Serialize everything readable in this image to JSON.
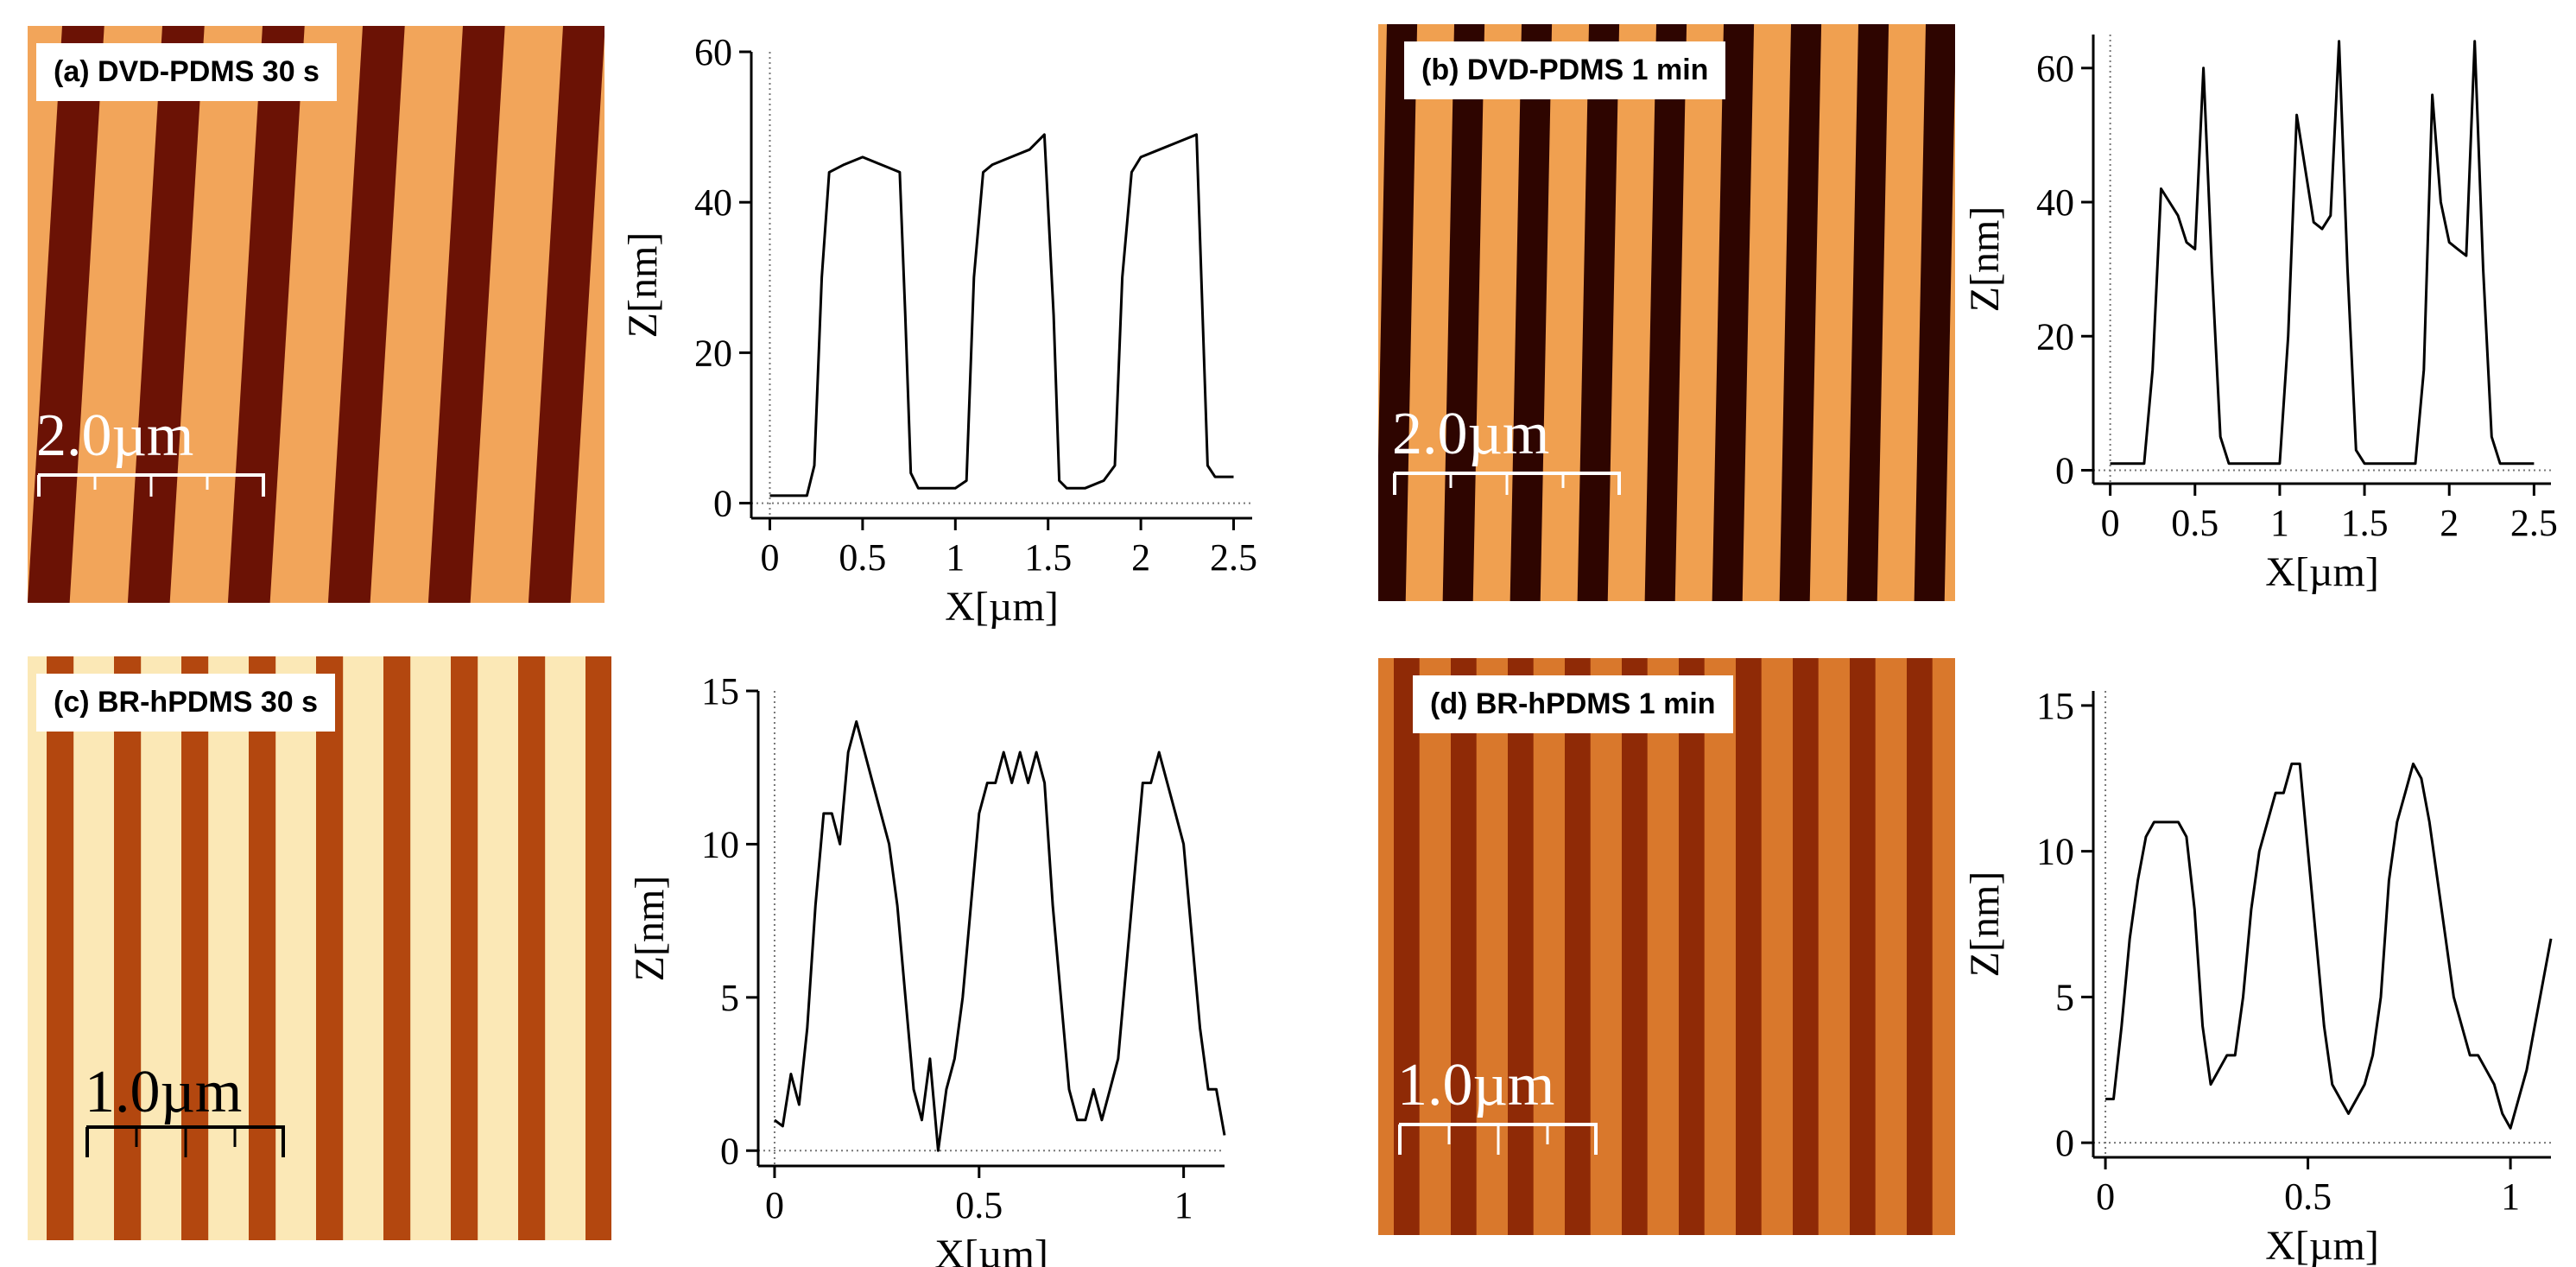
{
  "panels": [
    {
      "id": "a",
      "label": "(a) DVD-PDMS 30 s",
      "scale_bar": "2.0µm",
      "stripe_colors": {
        "light": "#f2a55a",
        "dark": "#6b1205"
      }
    },
    {
      "id": "b",
      "label": "(b) DVD-PDMS 1 min",
      "scale_bar": "2.0µm",
      "stripe_colors": {
        "light": "#f0a050",
        "dark": "#2e0500"
      }
    },
    {
      "id": "c",
      "label": "(c) BR-hPDMS 30 s",
      "scale_bar": "1.0µm",
      "stripe_colors": {
        "light": "#fbe8b6",
        "dark": "#b3470f"
      }
    },
    {
      "id": "d",
      "label": "(d) BR-hPDMS 1 min",
      "scale_bar": "1.0µm",
      "stripe_colors": {
        "light": "#d9782c",
        "dark": "#8f2a06"
      }
    }
  ],
  "chart_data": [
    {
      "type": "line",
      "panel": "a",
      "xlabel": "X[µm]",
      "ylabel": "Z[nm]",
      "xlim": [
        -0.1,
        2.6
      ],
      "ylim": [
        -2,
        60
      ],
      "xticks": [
        "0",
        "0.5",
        "1",
        "1.5",
        "2",
        "2.5"
      ],
      "yticks": [
        "0",
        "20",
        "40",
        "60"
      ],
      "series": [
        {
          "x": [
            0,
            0.1,
            0.2,
            0.24,
            0.28,
            0.32,
            0.4,
            0.5,
            0.6,
            0.7,
            0.73,
            0.76,
            0.8,
            0.9,
            1.0,
            1.06,
            1.1,
            1.15,
            1.2,
            1.3,
            1.4,
            1.48,
            1.53,
            1.56,
            1.6,
            1.7,
            1.8,
            1.86,
            1.9,
            1.95,
            2.0,
            2.1,
            2.2,
            2.3,
            2.36,
            2.4,
            2.5
          ],
          "y": [
            1,
            1,
            1,
            5,
            30,
            44,
            45,
            46,
            45,
            44,
            25,
            4,
            2,
            2,
            2,
            3,
            30,
            44,
            45,
            46,
            47,
            49,
            25,
            3,
            2,
            2,
            3,
            5,
            30,
            44,
            46,
            47,
            48,
            49,
            5,
            3.5,
            3.5
          ]
        }
      ]
    },
    {
      "type": "line",
      "panel": "b",
      "xlabel": "X[µm]",
      "ylabel": "Z[nm]",
      "xlim": [
        -0.1,
        2.6
      ],
      "ylim": [
        -2,
        65
      ],
      "xticks": [
        "0",
        "0.5",
        "1",
        "1.5",
        "2",
        "2.5"
      ],
      "yticks": [
        "0",
        "20",
        "40",
        "60"
      ],
      "series": [
        {
          "x": [
            0,
            0.1,
            0.2,
            0.25,
            0.3,
            0.35,
            0.4,
            0.45,
            0.5,
            0.55,
            0.6,
            0.65,
            0.7,
            0.8,
            0.9,
            1.0,
            1.05,
            1.1,
            1.15,
            1.2,
            1.25,
            1.3,
            1.35,
            1.4,
            1.45,
            1.5,
            1.6,
            1.7,
            1.8,
            1.85,
            1.9,
            1.95,
            2.0,
            2.05,
            2.1,
            2.15,
            2.2,
            2.25,
            2.3,
            2.4,
            2.5
          ],
          "y": [
            1,
            1,
            1,
            15,
            42,
            40,
            38,
            34,
            33,
            60,
            30,
            5,
            1,
            1,
            1,
            1,
            20,
            53,
            45,
            37,
            36,
            38,
            64,
            30,
            3,
            1,
            1,
            1,
            1,
            15,
            56,
            40,
            34,
            33,
            32,
            64,
            30,
            5,
            1,
            1,
            1
          ]
        }
      ]
    },
    {
      "type": "line",
      "panel": "c",
      "xlabel": "X[µm]",
      "ylabel": "Z[nm]",
      "xlim": [
        -0.04,
        1.1
      ],
      "ylim": [
        -0.5,
        15
      ],
      "xticks": [
        "0",
        "0.5",
        "1"
      ],
      "yticks": [
        "0",
        "5",
        "10",
        "15"
      ],
      "series": [
        {
          "x": [
            0,
            0.02,
            0.04,
            0.06,
            0.08,
            0.1,
            0.12,
            0.14,
            0.16,
            0.18,
            0.2,
            0.22,
            0.24,
            0.26,
            0.28,
            0.3,
            0.32,
            0.34,
            0.36,
            0.38,
            0.4,
            0.42,
            0.44,
            0.46,
            0.48,
            0.5,
            0.52,
            0.54,
            0.56,
            0.58,
            0.6,
            0.62,
            0.64,
            0.66,
            0.68,
            0.7,
            0.72,
            0.74,
            0.76,
            0.78,
            0.8,
            0.82,
            0.84,
            0.86,
            0.88,
            0.9,
            0.92,
            0.94,
            0.96,
            0.98,
            1.0,
            1.02,
            1.04,
            1.06,
            1.08,
            1.1
          ],
          "y": [
            1,
            0.8,
            2.5,
            1.5,
            4,
            8,
            11,
            11,
            10,
            13,
            14,
            13,
            12,
            11,
            10,
            8,
            5,
            2,
            1,
            3,
            0,
            2,
            3,
            5,
            8,
            11,
            12,
            12,
            13,
            12,
            13,
            12,
            13,
            12,
            8,
            5,
            2,
            1,
            1,
            2,
            1,
            2,
            3,
            6,
            9,
            12,
            12,
            13,
            12,
            11,
            10,
            7,
            4,
            2,
            2,
            0.5
          ]
        }
      ]
    },
    {
      "type": "line",
      "panel": "d",
      "xlabel": "X[µm]",
      "ylabel": "Z[nm]",
      "xlim": [
        -0.03,
        1.1
      ],
      "ylim": [
        -0.5,
        15.5
      ],
      "xticks": [
        "0",
        "0.5",
        "1"
      ],
      "yticks": [
        "0",
        "5",
        "10",
        "15"
      ],
      "series": [
        {
          "x": [
            0,
            0.02,
            0.04,
            0.06,
            0.08,
            0.1,
            0.12,
            0.14,
            0.16,
            0.18,
            0.2,
            0.22,
            0.24,
            0.26,
            0.28,
            0.3,
            0.32,
            0.34,
            0.36,
            0.38,
            0.4,
            0.42,
            0.44,
            0.46,
            0.48,
            0.5,
            0.52,
            0.54,
            0.56,
            0.58,
            0.6,
            0.62,
            0.64,
            0.66,
            0.68,
            0.7,
            0.72,
            0.74,
            0.76,
            0.78,
            0.8,
            0.82,
            0.84,
            0.86,
            0.88,
            0.9,
            0.92,
            0.94,
            0.96,
            0.98,
            1.0,
            1.02,
            1.04,
            1.06,
            1.08,
            1.1
          ],
          "y": [
            1.5,
            1.5,
            4,
            7,
            9,
            10.5,
            11,
            11,
            11,
            11,
            10.5,
            8,
            4,
            2,
            2.5,
            3,
            3,
            5,
            8,
            10,
            11,
            12,
            12,
            13,
            13,
            10,
            7,
            4,
            2,
            1.5,
            1,
            1.5,
            2,
            3,
            5,
            9,
            11,
            12,
            13,
            12.5,
            11,
            9,
            7,
            5,
            4,
            3,
            3,
            2.5,
            2,
            1,
            0.5,
            1.5,
            2.5,
            4,
            5.5,
            7
          ]
        }
      ]
    }
  ]
}
